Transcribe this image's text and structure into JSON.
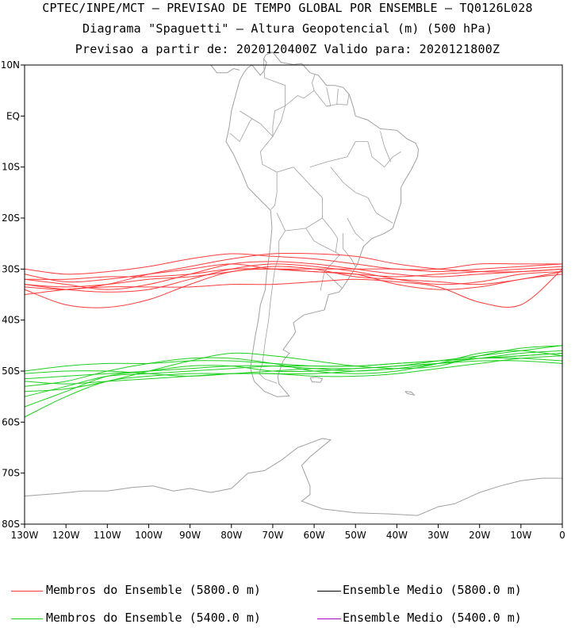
{
  "header": {
    "line1": "CPTEC/INPE/MCT — PREVISAO DE TEMPO GLOBAL POR ENSEMBLE — TQ0126L028",
    "line2": "Diagrama \"Spaguetti\" — Altura Geopotencial (m) (500 hPa)",
    "line3": "Previsao a partir de: 2020120400Z  Valido para: 2020121800Z"
  },
  "legend": {
    "members_5800": "Membros do Ensemble (5800.0 m)",
    "mean_5800": "Ensemble Medio (5800.0 m)",
    "members_5400": "Membros do Ensemble (5400.0 m)",
    "mean_5400": "Ensemble Medio (5400.0 m)"
  },
  "colors": {
    "members_5800": "#ff3b3b",
    "members_5400": "#1fd01f",
    "mean_5800": "#000000",
    "mean_5400": "#a000c0",
    "coast": "#a0a0a0"
  },
  "chart_data": {
    "type": "line",
    "xlim": [
      -130,
      0
    ],
    "ylim": [
      -80,
      10
    ],
    "x_ticks": [
      -130,
      -120,
      -110,
      -100,
      -90,
      -80,
      -70,
      -60,
      -50,
      -40,
      -30,
      -20,
      -10,
      0
    ],
    "x_tick_labels": [
      "130W",
      "120W",
      "110W",
      "100W",
      "90W",
      "80W",
      "70W",
      "60W",
      "50W",
      "40W",
      "30W",
      "20W",
      "10W",
      "0"
    ],
    "y_ticks": [
      10,
      0,
      -10,
      -20,
      -30,
      -40,
      -50,
      -60,
      -70,
      -80
    ],
    "y_tick_labels": [
      "10N",
      "EQ",
      "10S",
      "20S",
      "30S",
      "40S",
      "50S",
      "60S",
      "70S",
      "80S"
    ],
    "x": [
      -130,
      -120,
      -110,
      -100,
      -90,
      -80,
      -70,
      -60,
      -50,
      -40,
      -30,
      -20,
      -10,
      0
    ],
    "series_5800": [
      [
        -31,
        -32.5,
        -32,
        -31,
        -30,
        -29,
        -30,
        -30.5,
        -31,
        -31.5,
        -31,
        -30.5,
        -30,
        -29.5
      ],
      [
        -32,
        -33,
        -34,
        -33,
        -31,
        -29,
        -28.5,
        -29,
        -30,
        -31,
        -31.5,
        -31,
        -30.5,
        -30
      ],
      [
        -33,
        -34,
        -34.5,
        -34,
        -32,
        -30,
        -29,
        -29.5,
        -30.5,
        -32,
        -33,
        -32.5,
        -31,
        -30.5
      ],
      [
        -34,
        -37,
        -37.5,
        -36,
        -33,
        -30.5,
        -30,
        -30.5,
        -31,
        -33,
        -34,
        -33.5,
        -32,
        -31
      ],
      [
        -30,
        -31,
        -30.5,
        -29.5,
        -28,
        -27,
        -27.5,
        -28,
        -29,
        -30,
        -30,
        -29,
        -29,
        -29
      ],
      [
        -33,
        -33.5,
        -33,
        -32,
        -31.5,
        -30.5,
        -29.5,
        -30,
        -31.5,
        -32,
        -32.5,
        -33,
        -32,
        -30.5
      ],
      [
        -35,
        -34,
        -33.5,
        -33.5,
        -33.5,
        -33,
        -33,
        -32.5,
        -32,
        -32.5,
        -33.5,
        -36.5,
        -37,
        -30
      ],
      [
        -33.5,
        -34,
        -33,
        -31,
        -29.5,
        -28,
        -27,
        -27,
        -27.5,
        -29,
        -30,
        -30.5,
        -30.5,
        -30
      ],
      [
        -32,
        -32,
        -31.5,
        -31.5,
        -31,
        -30,
        -30,
        -30,
        -30,
        -30,
        -30.5,
        -30,
        -29.5,
        -29
      ]
    ],
    "series_5400": [
      [
        -55,
        -53,
        -51,
        -50.5,
        -50,
        -49.5,
        -49,
        -49,
        -49,
        -48.5,
        -48,
        -47.5,
        -47,
        -46.5
      ],
      [
        -57,
        -54,
        -51,
        -50,
        -49,
        -49,
        -50,
        -50,
        -49.5,
        -49,
        -48,
        -47,
        -46,
        -45
      ],
      [
        -59,
        -55,
        -52,
        -51,
        -50.5,
        -50.5,
        -50.5,
        -51,
        -51,
        -50.5,
        -49.5,
        -48.5,
        -47.5,
        -47
      ],
      [
        -52,
        -52.5,
        -52,
        -51.5,
        -51,
        -50.5,
        -50.5,
        -50.5,
        -50,
        -49.5,
        -48.5,
        -47.5,
        -47,
        -46.5
      ],
      [
        -50,
        -49,
        -48.5,
        -48.5,
        -48,
        -48,
        -48.5,
        -49,
        -49,
        -48.5,
        -48,
        -47.5,
        -47.5,
        -48
      ],
      [
        -54,
        -53.5,
        -52,
        -50,
        -48,
        -46.5,
        -47,
        -48,
        -49,
        -49.5,
        -49,
        -47,
        -45.5,
        -45
      ],
      [
        -51.5,
        -51,
        -50.5,
        -50,
        -49.5,
        -49,
        -49,
        -49.5,
        -50,
        -49.5,
        -48.5,
        -47.5,
        -46.5,
        -46
      ],
      [
        -53,
        -52,
        -50,
        -48.5,
        -47.5,
        -47.5,
        -48.5,
        -50,
        -50.5,
        -50,
        -48.5,
        -46.5,
        -46,
        -47
      ],
      [
        -50.5,
        -50,
        -50,
        -50.5,
        -51,
        -50.5,
        -50,
        -49.5,
        -49.5,
        -49,
        -48.5,
        -48,
        -48,
        -48.5
      ]
    ]
  }
}
